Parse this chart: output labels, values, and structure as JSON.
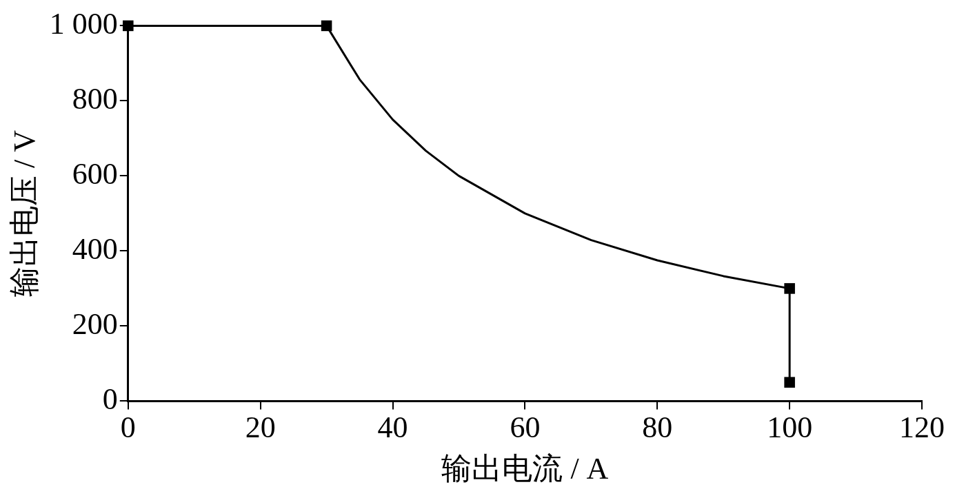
{
  "chart_data": {
    "type": "line",
    "xlabel": "输出电流 / A",
    "ylabel": "输出电压 / V",
    "xlim": [
      0,
      120
    ],
    "xticks": [
      0,
      20,
      40,
      60,
      80,
      100,
      120
    ],
    "ylim": [
      0,
      1000
    ],
    "yticks": [
      0,
      200,
      400,
      600,
      800,
      {
        "value": 1000,
        "label": "1 000"
      }
    ],
    "grid": false,
    "legend": false,
    "line_style": "solid",
    "series": [
      {
        "color": "#000000",
        "marker": "none",
        "x": [
          0,
          30,
          35,
          40,
          45,
          50,
          60,
          70,
          80,
          90,
          100,
          100
        ],
        "values": [
          1000,
          1000,
          857,
          750,
          667,
          600,
          500,
          429,
          375,
          333,
          300,
          50
        ]
      },
      {
        "type": "scatter",
        "color": "#000000",
        "marker": "square",
        "x": [
          0,
          30,
          100,
          100
        ],
        "values": [
          1000,
          1000,
          300,
          50
        ]
      }
    ]
  }
}
